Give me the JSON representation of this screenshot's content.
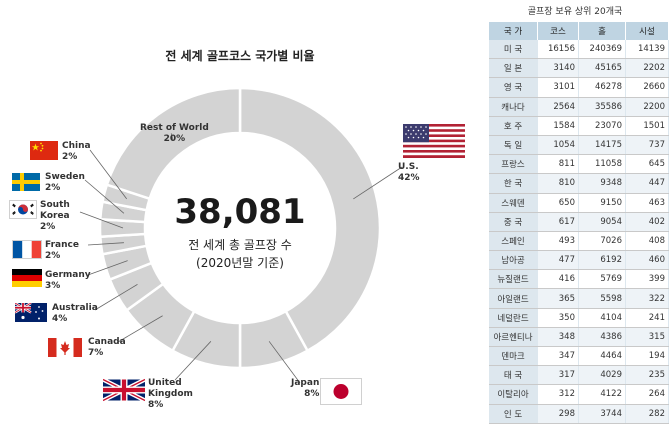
{
  "chart_data": [
    {
      "type": "donut",
      "title": "전 세계 골프코스 국가별 비율",
      "center": {
        "value": "38,081",
        "line1": "전 세계 총 골프장 수",
        "line2": "(2020년말 기준)"
      },
      "slices": [
        {
          "name": "U.S.",
          "label": "U.S.",
          "percent_label": "42%",
          "value": 42
        },
        {
          "name": "Japan",
          "label": "Japan",
          "percent_label": "8%",
          "value": 8
        },
        {
          "name": "United Kingdom",
          "label": "United\nKingdom",
          "percent_label": "8%",
          "value": 8
        },
        {
          "name": "Canada",
          "label": "Canada",
          "percent_label": "7%",
          "value": 7
        },
        {
          "name": "Australia",
          "label": "Australia",
          "percent_label": "4%",
          "value": 4
        },
        {
          "name": "Germany",
          "label": "Germany",
          "percent_label": "3%",
          "value": 3
        },
        {
          "name": "France",
          "label": "France",
          "percent_label": "2%",
          "value": 2
        },
        {
          "name": "South Korea",
          "label": "South\nKorea",
          "percent_label": "2%",
          "value": 2
        },
        {
          "name": "Sweden",
          "label": "Sweden",
          "percent_label": "2%",
          "value": 2
        },
        {
          "name": "China",
          "label": "China",
          "percent_label": "2%",
          "value": 2
        },
        {
          "name": "Rest of World",
          "label": "Rest of World",
          "percent_label": "20%",
          "value": 20
        }
      ],
      "colors": {
        "slice": "#d3d3d3",
        "separator": "#ffffff",
        "leader": "#666666"
      }
    },
    {
      "type": "table",
      "title": "골프장 보유 상위 20개국",
      "columns": [
        "국 가",
        "코스",
        "홀",
        "시설"
      ],
      "rows": [
        [
          "미 국",
          "16156",
          "240369",
          "14139"
        ],
        [
          "일 본",
          "3140",
          "45165",
          "2202"
        ],
        [
          "영 국",
          "3101",
          "46278",
          "2660"
        ],
        [
          "캐나다",
          "2564",
          "35586",
          "2200"
        ],
        [
          "호 주",
          "1584",
          "23070",
          "1501"
        ],
        [
          "독 일",
          "1054",
          "14175",
          "737"
        ],
        [
          "프랑스",
          "811",
          "11058",
          "645"
        ],
        [
          "한 국",
          "810",
          "9348",
          "447"
        ],
        [
          "스웨덴",
          "650",
          "9150",
          "463"
        ],
        [
          "중 국",
          "617",
          "9054",
          "402"
        ],
        [
          "스페인",
          "493",
          "7026",
          "408"
        ],
        [
          "남아공",
          "477",
          "6192",
          "460"
        ],
        [
          "뉴질랜드",
          "416",
          "5769",
          "399"
        ],
        [
          "아일랜드",
          "365",
          "5598",
          "322"
        ],
        [
          "네덜란드",
          "350",
          "4104",
          "241"
        ],
        [
          "아르헨티나",
          "348",
          "4386",
          "315"
        ],
        [
          "덴마크",
          "347",
          "4464",
          "194"
        ],
        [
          "태 국",
          "317",
          "4029",
          "235"
        ],
        [
          "이탈리아",
          "312",
          "4122",
          "264"
        ],
        [
          "인 도",
          "298",
          "3744",
          "282"
        ]
      ]
    }
  ]
}
